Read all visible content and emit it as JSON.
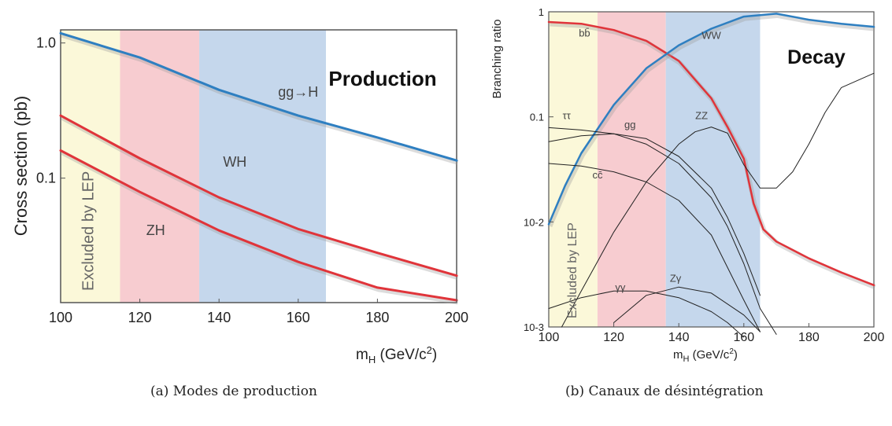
{
  "chart_data": [
    {
      "type": "line",
      "panel_title": "Production",
      "xlabel": "m_H (GeV/c²)",
      "ylabel": "Cross section (pb)",
      "xlim": [
        100,
        200
      ],
      "ylim": [
        0.012,
        1.25
      ],
      "y_scale": "log",
      "x_ticks": [
        100,
        120,
        140,
        160,
        180,
        200
      ],
      "y_ticks": [
        {
          "value": 1.0,
          "label": "1.0"
        },
        {
          "value": 0.1,
          "label": "0.1"
        }
      ],
      "bands": [
        {
          "from": 100,
          "to": 115,
          "color": "#fbf8d9",
          "label": "Excluded by LEP"
        },
        {
          "from": 115,
          "to": 135,
          "color": "#f7ccd0",
          "label": ""
        },
        {
          "from": 135,
          "to": 167,
          "color": "#c5d7ec",
          "label": ""
        }
      ],
      "series": [
        {
          "name": "gg→H",
          "color": "#2e7fc1",
          "x": [
            100,
            120,
            140,
            160,
            180,
            200
          ],
          "y": [
            1.18,
            0.78,
            0.45,
            0.29,
            0.2,
            0.135
          ]
        },
        {
          "name": "WH",
          "color": "#e0343a",
          "x": [
            100,
            120,
            140,
            160,
            180,
            200
          ],
          "y": [
            0.29,
            0.14,
            0.072,
            0.042,
            0.028,
            0.019
          ]
        },
        {
          "name": "ZH",
          "color": "#e0343a",
          "x": [
            100,
            120,
            140,
            160,
            180,
            200
          ],
          "y": [
            0.16,
            0.079,
            0.041,
            0.024,
            0.0155,
            0.0125
          ]
        }
      ],
      "annotations": [
        {
          "text": "gg→H",
          "x": 160,
          "y": 0.4
        },
        {
          "text": "WH",
          "x": 144,
          "y": 0.122
        },
        {
          "text": "ZH",
          "x": 124,
          "y": 0.038
        }
      ]
    },
    {
      "type": "line",
      "panel_title": "Decay",
      "xlabel": "m_H (GeV/c²)",
      "ylabel": "Branching ratio",
      "xlim": [
        100,
        200
      ],
      "ylim": [
        0.001,
        1
      ],
      "y_scale": "log",
      "x_ticks": [
        100,
        120,
        140,
        160,
        180,
        200
      ],
      "y_ticks": [
        {
          "value": 1,
          "label": "1"
        },
        {
          "value": 0.1,
          "label": "0.1"
        },
        {
          "value": 0.01,
          "label": "10-2"
        },
        {
          "value": 0.001,
          "label": "10-3"
        }
      ],
      "bands": [
        {
          "from": 100,
          "to": 115,
          "color": "#fbf8d9",
          "label": "Excluded by LEP"
        },
        {
          "from": 115,
          "to": 136,
          "color": "#f7ccd0",
          "label": ""
        },
        {
          "from": 136,
          "to": 165,
          "color": "#c5d7ec",
          "label": ""
        }
      ],
      "series": [
        {
          "name": "bb̄",
          "color": "#e0343a",
          "x": [
            100,
            110,
            120,
            130,
            140,
            150,
            155,
            160,
            163,
            166,
            170,
            180,
            190,
            200
          ],
          "y": [
            0.8,
            0.77,
            0.67,
            0.53,
            0.34,
            0.15,
            0.08,
            0.04,
            0.015,
            0.0085,
            0.0065,
            0.0045,
            0.0033,
            0.0025
          ]
        },
        {
          "name": "WW",
          "color": "#2e7fc1",
          "x": [
            100,
            105,
            110,
            120,
            130,
            140,
            150,
            160,
            170,
            180,
            190,
            200
          ],
          "y": [
            0.0095,
            0.022,
            0.045,
            0.13,
            0.29,
            0.48,
            0.69,
            0.9,
            0.96,
            0.84,
            0.77,
            0.72
          ]
        },
        {
          "name": "ZZ",
          "color": "#222222",
          "x": [
            104,
            110,
            120,
            130,
            140,
            145,
            150,
            155,
            160,
            165,
            170,
            175,
            180,
            185,
            190,
            200
          ],
          "y": [
            0.001,
            0.0022,
            0.008,
            0.024,
            0.055,
            0.072,
            0.08,
            0.07,
            0.035,
            0.021,
            0.021,
            0.03,
            0.055,
            0.11,
            0.19,
            0.26
          ]
        },
        {
          "name": "ττ",
          "color": "#222222",
          "x": [
            100,
            110,
            120,
            130,
            140,
            150,
            155,
            160,
            165,
            170
          ],
          "y": [
            0.079,
            0.075,
            0.069,
            0.055,
            0.036,
            0.017,
            0.009,
            0.004,
            0.0015,
            0.00085
          ]
        },
        {
          "name": "gg",
          "color": "#222222",
          "x": [
            100,
            110,
            120,
            130,
            140,
            150,
            155,
            160,
            165
          ],
          "y": [
            0.058,
            0.066,
            0.069,
            0.062,
            0.042,
            0.021,
            0.011,
            0.005,
            0.002
          ]
        },
        {
          "name": "cc̄",
          "color": "#222222",
          "x": [
            100,
            110,
            120,
            130,
            140,
            150,
            160,
            165
          ],
          "y": [
            0.036,
            0.034,
            0.03,
            0.024,
            0.016,
            0.0075,
            0.0018,
            0.0009
          ]
        },
        {
          "name": "γγ",
          "color": "#222222",
          "x": [
            100,
            110,
            120,
            130,
            140,
            150,
            155,
            160
          ],
          "y": [
            0.0015,
            0.0019,
            0.0022,
            0.0022,
            0.0019,
            0.0014,
            0.0011,
            0.0008
          ]
        },
        {
          "name": "Zγ",
          "color": "#222222",
          "x": [
            120,
            130,
            140,
            150,
            160,
            165
          ],
          "y": [
            0.0011,
            0.002,
            0.0024,
            0.0021,
            0.0013,
            0.0009
          ]
        }
      ],
      "annotations": [
        {
          "text": "bb̄",
          "x": 111,
          "y": 0.58
        },
        {
          "text": "WW",
          "x": 150,
          "y": 0.55
        },
        {
          "text": "ττ",
          "x": 105.5,
          "y": 0.095
        },
        {
          "text": "gg",
          "x": 125,
          "y": 0.078
        },
        {
          "text": "ZZ",
          "x": 147,
          "y": 0.095
        },
        {
          "text": "cc̄",
          "x": 115,
          "y": 0.026
        },
        {
          "text": "γγ",
          "x": 122,
          "y": 0.0022
        },
        {
          "text": "Zγ",
          "x": 139,
          "y": 0.0027
        }
      ]
    }
  ],
  "captions": {
    "a": "(a) Modes de production",
    "b": "(b) Canaux de désintégration"
  }
}
